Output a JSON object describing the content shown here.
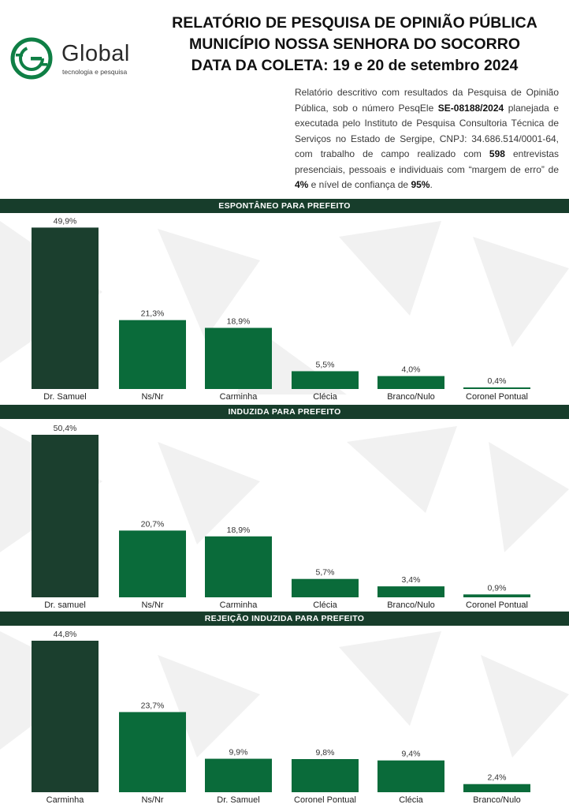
{
  "header": {
    "title_lines": [
      "RELATÓRIO DE PESQUISA DE OPINIÃO PÚBLICA",
      "MUNICÍPIO NOSSA SENHORA DO SOCORRO",
      "DATA DA COLETA: 19 e 20 de setembro 2024"
    ],
    "logo": {
      "word": "Global",
      "tagline": "tecnologia e pesquisa",
      "icon": "globe-g-icon"
    },
    "description": {
      "p1": "Relatório descritivo com resultados da Pesquisa de Opinião Pública, sob o número PesqEle ",
      "registro": "SE-08188/2024",
      "p2": " planejada e executada pelo Instituto de Pesquisa Consultoria Técnica de Serviços no Estado de Sergipe, CNPJ: 34.686.514/0001-64, com trabalho de campo realizado com ",
      "entrevistas": "598",
      "p3": " entrevistas presenciais, pessoais e individuais com “margem de erro” de ",
      "margem": "4%",
      "p4": " e nível de confiança de ",
      "confianca": "95%",
      "p5": "."
    }
  },
  "colors": {
    "band": "#173d2b",
    "leader": "#1b3f2e",
    "others": "#0a6b3a",
    "accent": "#0f7f45"
  },
  "chart_data": [
    {
      "type": "bar",
      "title": "ESPONTÂNEO PARA PREFEITO",
      "categories": [
        "Dr. Samuel",
        "Ns/Nr",
        "Carminha",
        "Clécia",
        "Branco/Nulo",
        "Coronel Pontual"
      ],
      "values": [
        49.9,
        21.3,
        18.9,
        5.5,
        4.0,
        0.4
      ],
      "labels": [
        "49,9%",
        "21,3%",
        "18,9%",
        "5,5%",
        "4,0%",
        "0,4%"
      ],
      "ylim": [
        0,
        50
      ]
    },
    {
      "type": "bar",
      "title": "INDUZIDA PARA PREFEITO",
      "categories": [
        "Dr. samuel",
        "Ns/Nr",
        "Carminha",
        "Clécia",
        "Branco/Nulo",
        "Coronel Pontual"
      ],
      "values": [
        50.4,
        20.7,
        18.9,
        5.7,
        3.4,
        0.9
      ],
      "labels": [
        "50,4%",
        "20,7%",
        "18,9%",
        "5,7%",
        "3,4%",
        "0,9%"
      ],
      "ylim": [
        0,
        50.4
      ]
    },
    {
      "type": "bar",
      "title": "REJEIÇÃO INDUZIDA PARA PREFEITO",
      "categories": [
        "Carminha",
        "Ns/Nr",
        "Dr. Samuel",
        "Coronel Pontual",
        "Clécia",
        "Branco/Nulo"
      ],
      "values": [
        44.8,
        23.7,
        9.9,
        9.8,
        9.4,
        2.4
      ],
      "labels": [
        "44,8%",
        "23,7%",
        "9,9%",
        "9,8%",
        "9,4%",
        "2,4%"
      ],
      "ylim": [
        0,
        44.8
      ]
    }
  ]
}
